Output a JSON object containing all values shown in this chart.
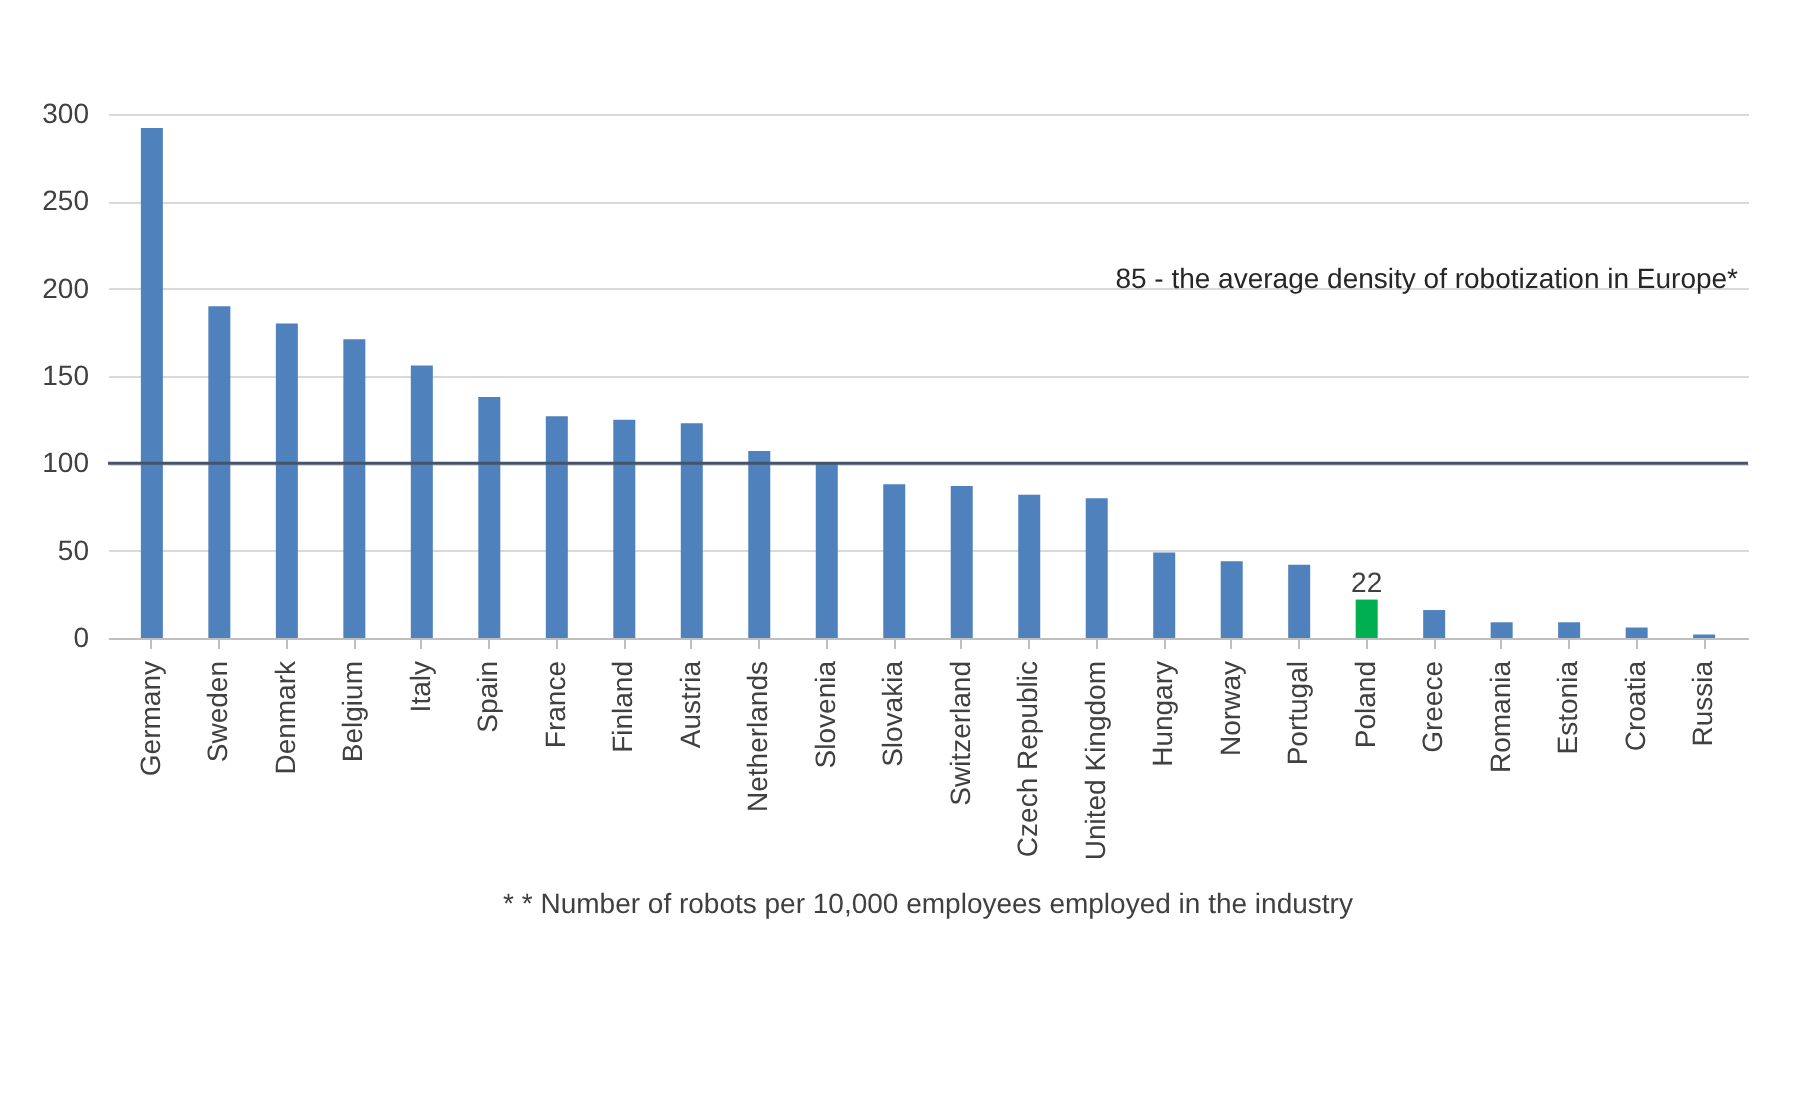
{
  "chart_data": {
    "type": "bar",
    "categories": [
      "Germany",
      "Sweden",
      "Denmark",
      "Belgium",
      "Italy",
      "Spain",
      "France",
      "Finland",
      "Austria",
      "Netherlands",
      "Slovenia",
      "Slovakia",
      "Switzerland",
      "Czech Republic",
      "United Kingdom",
      "Hungary",
      "Norway",
      "Portugal",
      "Poland",
      "Greece",
      "Romania",
      "Estonia",
      "Croatia",
      "Russia"
    ],
    "values": [
      292,
      190,
      180,
      171,
      156,
      138,
      127,
      125,
      123,
      107,
      100,
      88,
      87,
      82,
      80,
      49,
      44,
      42,
      22,
      16,
      9,
      9,
      6,
      2
    ],
    "colors": [
      "#4f81bd",
      "#4f81bd",
      "#4f81bd",
      "#4f81bd",
      "#4f81bd",
      "#4f81bd",
      "#4f81bd",
      "#4f81bd",
      "#4f81bd",
      "#4f81bd",
      "#4f81bd",
      "#4f81bd",
      "#4f81bd",
      "#4f81bd",
      "#4f81bd",
      "#4f81bd",
      "#4f81bd",
      "#4f81bd",
      "#00b050",
      "#4f81bd",
      "#4f81bd",
      "#4f81bd",
      "#4f81bd",
      "#4f81bd"
    ],
    "value_labels": [
      null,
      null,
      null,
      null,
      null,
      null,
      null,
      null,
      null,
      null,
      null,
      null,
      null,
      null,
      null,
      null,
      null,
      null,
      "22",
      null,
      null,
      null,
      null,
      null
    ],
    "ylim": [
      0,
      300
    ],
    "yticks": [
      0,
      50,
      100,
      150,
      200,
      250,
      300
    ],
    "grid": "y",
    "ref_lines": [
      {
        "axis": "y",
        "value": 100,
        "color": "#44546a"
      }
    ],
    "annotations": [
      "85 - the average density of robotization in Europe*",
      "* * Number of robots per 10,000 employees employed in the industry"
    ]
  }
}
